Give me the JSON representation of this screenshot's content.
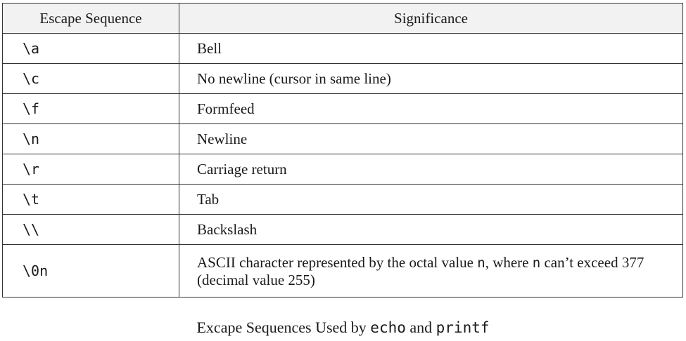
{
  "table": {
    "headers": [
      "Escape Sequence",
      "Significance"
    ],
    "rows": [
      {
        "seq": "\\a",
        "sig": "Bell"
      },
      {
        "seq": "\\c",
        "sig": "No newline (cursor in same line)"
      },
      {
        "seq": "\\f",
        "sig": "Formfeed"
      },
      {
        "seq": "\\n",
        "sig": "Newline"
      },
      {
        "seq": "\\r",
        "sig": "Carriage return"
      },
      {
        "seq": "\\t",
        "sig": "Tab"
      },
      {
        "seq": "\\\\",
        "sig": "Backslash"
      },
      {
        "seq": "\\0n",
        "sig_parts": [
          "ASCII character represented by the octal value ",
          "n",
          ", where ",
          "n",
          " can’t exceed 377 (decimal value 255)"
        ]
      }
    ]
  },
  "caption": {
    "prefix": "Excape Sequences Used by ",
    "cmd1": "echo",
    "middle": " and ",
    "cmd2": "printf"
  }
}
